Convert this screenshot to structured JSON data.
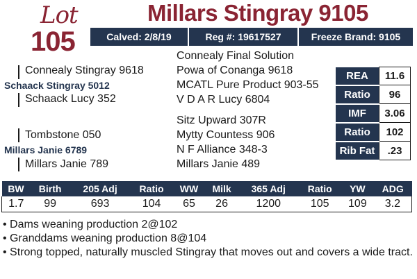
{
  "lot": {
    "word": "Lot",
    "number": "105"
  },
  "title": "Millars Stingray 9105",
  "info": {
    "calved": "Calved: 2/8/19",
    "reg": "Reg #: 19617527",
    "freeze": "Freeze Brand: 9105"
  },
  "pedigree": {
    "sire_sire": "Connealy Stingray 9618",
    "sire": "Schaack Stingray 5012",
    "sire_dam": "Schaack Lucy 352",
    "dam_sire": "Tombstone 050",
    "dam": "Millars Janie 6789",
    "dam_dam": "Millars Janie 789",
    "r1": "Connealy Final Solution",
    "r2": "Powa of Conanga 9618",
    "r3": "MCATL Pure Product 903-55",
    "r4": "V D A R Lucy 6804",
    "r5": "Sitz Upward 307R",
    "r6": "Mytty Countess 906",
    "r7": "N F Alliance 348-3",
    "r8": "Millars Janie 489"
  },
  "carcass": [
    {
      "label": "REA",
      "value": "11.6"
    },
    {
      "label": "Ratio",
      "value": "96"
    },
    {
      "label": "IMF",
      "value": "3.06"
    },
    {
      "label": "Ratio",
      "value": "102"
    },
    {
      "label": "Rib Fat",
      "value": ".23"
    }
  ],
  "performance": {
    "headers": [
      "BW",
      "Birth",
      "205 Adj",
      "Ratio",
      "WW",
      "Milk",
      "365 Adj",
      "Ratio",
      "YW",
      "ADG"
    ],
    "values": [
      "1.7",
      "99",
      "693",
      "104",
      "65",
      "26",
      "1200",
      "105",
      "109",
      "3.2"
    ]
  },
  "notes": [
    "• Dams weaning production 2@102",
    "• Granddams weaning production 8@104",
    "• Strong topped, naturally muscled Stingray that moves out and covers a wide tract."
  ],
  "colors": {
    "maroon": "#8a2433",
    "navy": "#24354f"
  }
}
